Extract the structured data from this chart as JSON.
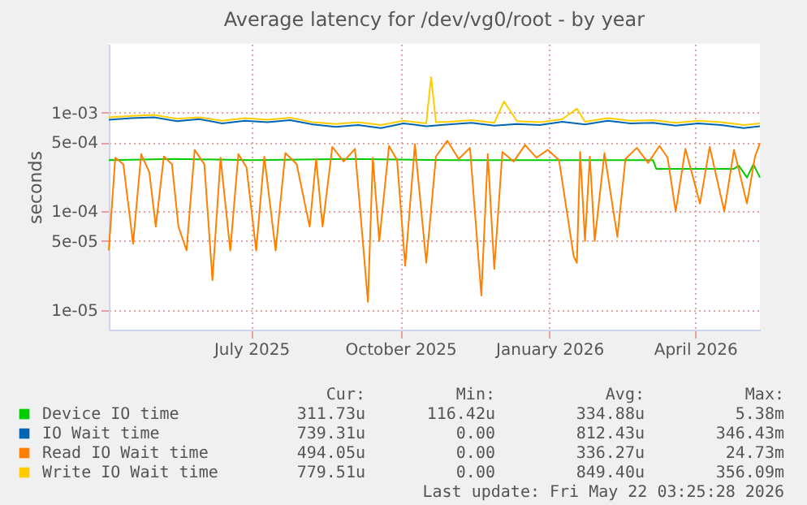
{
  "chart_data": {
    "type": "line",
    "title": "Average latency for /dev/vg0/root - by year",
    "ylabel": "seconds",
    "log": true,
    "grid": true,
    "legend": "bottom",
    "line_style": "solid",
    "marker": "none",
    "xlim": [
      "2025-04-04",
      "2026-05-11"
    ],
    "xticks": [
      {
        "value": "2025-07-01",
        "label": "July 2025"
      },
      {
        "value": "2025-10-01",
        "label": "October 2025"
      },
      {
        "value": "2026-01-01",
        "label": "January 2026"
      },
      {
        "value": "2026-04-01",
        "label": "April 2026"
      }
    ],
    "ylim": [
      6.3e-06,
      0.005
    ],
    "yticks": [
      {
        "value": 1e-05,
        "label": "1e-05"
      },
      {
        "value": 5e-05,
        "label": "5e-05"
      },
      {
        "value": 0.0001,
        "label": "1e-04"
      },
      {
        "value": 0.0005,
        "label": "5e-04"
      },
      {
        "value": 0.001,
        "label": "1e-03"
      }
    ],
    "series": [
      {
        "name": "Device IO time",
        "color": "#00cc00",
        "x": [
          "2025-04-04",
          "2025-05-15",
          "2025-07-01",
          "2025-09-01",
          "2025-11-01",
          "2026-01-01",
          "2026-03-06",
          "2026-03-08",
          "2026-04-25",
          "2026-04-28",
          "2026-05-03",
          "2026-05-07",
          "2026-05-11"
        ],
        "values": [
          0.00033,
          0.00034,
          0.00033,
          0.00034,
          0.00033,
          0.00033,
          0.00033,
          0.00027,
          0.00027,
          0.00029,
          0.00022,
          0.0003,
          0.00022
        ]
      },
      {
        "name": "IO Wait time",
        "color": "#0066b3",
        "x": [
          "2025-04-04",
          "2025-04-18",
          "2025-05-02",
          "2025-05-16",
          "2025-05-30",
          "2025-06-13",
          "2025-06-27",
          "2025-07-11",
          "2025-07-25",
          "2025-08-08",
          "2025-08-22",
          "2025-09-05",
          "2025-09-19",
          "2025-10-03",
          "2025-10-17",
          "2025-10-31",
          "2025-11-14",
          "2025-11-28",
          "2025-12-12",
          "2025-12-26",
          "2026-01-09",
          "2026-01-23",
          "2026-02-06",
          "2026-02-20",
          "2026-03-06",
          "2026-03-20",
          "2026-04-03",
          "2026-04-17",
          "2026-05-01",
          "2026-05-11"
        ],
        "values": [
          0.00085,
          0.00088,
          0.0009,
          0.00082,
          0.00086,
          0.00078,
          0.00083,
          0.0008,
          0.00084,
          0.00076,
          0.00072,
          0.00075,
          0.0007,
          0.00078,
          0.00073,
          0.00076,
          0.00079,
          0.00074,
          0.00077,
          0.00075,
          0.00081,
          0.00076,
          0.00083,
          0.00078,
          0.00079,
          0.00074,
          0.00078,
          0.00075,
          0.0007,
          0.00073
        ]
      },
      {
        "name": "Read IO Wait time",
        "color": "#ff8000",
        "x": [
          "2025-04-04",
          "2025-04-08",
          "2025-04-13",
          "2025-04-19",
          "2025-04-24",
          "2025-04-29",
          "2025-05-03",
          "2025-05-08",
          "2025-05-13",
          "2025-05-17",
          "2025-05-22",
          "2025-05-27",
          "2025-06-02",
          "2025-06-07",
          "2025-06-12",
          "2025-06-18",
          "2025-06-23",
          "2025-06-28",
          "2025-07-04",
          "2025-07-09",
          "2025-07-16",
          "2025-07-22",
          "2025-07-29",
          "2025-08-06",
          "2025-08-10",
          "2025-08-14",
          "2025-08-20",
          "2025-08-27",
          "2025-09-03",
          "2025-09-11",
          "2025-09-14",
          "2025-09-18",
          "2025-09-24",
          "2025-09-29",
          "2025-10-04",
          "2025-10-10",
          "2025-10-17",
          "2025-10-23",
          "2025-10-30",
          "2025-11-06",
          "2025-11-13",
          "2025-11-20",
          "2025-11-24",
          "2025-11-28",
          "2025-12-03",
          "2025-12-10",
          "2025-12-17",
          "2025-12-24",
          "2025-12-31",
          "2026-01-07",
          "2026-01-16",
          "2026-01-18",
          "2026-01-20",
          "2026-01-23",
          "2026-01-26",
          "2026-01-29",
          "2026-02-04",
          "2026-02-12",
          "2026-02-17",
          "2026-02-24",
          "2026-03-03",
          "2026-03-10",
          "2026-03-15",
          "2026-03-20",
          "2026-03-26",
          "2026-04-04",
          "2026-04-10",
          "2026-04-19",
          "2026-04-25",
          "2026-05-03",
          "2026-05-08",
          "2026-05-11"
        ],
        "values": [
          4e-05,
          0.00035,
          0.0003,
          4.7e-05,
          0.00038,
          0.00025,
          7e-05,
          0.00036,
          0.0003,
          7e-05,
          4e-05,
          0.00042,
          0.0003,
          2e-05,
          0.00035,
          4e-05,
          0.00038,
          0.00028,
          4e-05,
          0.00036,
          4e-05,
          0.00039,
          0.0003,
          7e-05,
          0.00034,
          7e-05,
          0.00045,
          0.00032,
          0.00043,
          1.2e-05,
          0.00035,
          5e-05,
          0.00046,
          0.00033,
          2.8e-05,
          0.00048,
          3e-05,
          0.00036,
          0.00052,
          0.00034,
          0.00044,
          1.4e-05,
          0.00038,
          2.6e-05,
          0.0004,
          0.00032,
          0.00047,
          0.00035,
          0.00042,
          0.00033,
          3.5e-05,
          3e-05,
          0.0004,
          5e-05,
          0.00036,
          5e-05,
          0.00039,
          5.5e-05,
          0.00034,
          0.00044,
          0.00031,
          0.00046,
          0.00035,
          0.0001,
          0.00043,
          0.00012,
          0.00045,
          0.0001,
          0.00042,
          0.00012,
          0.00036,
          0.00049
        ]
      },
      {
        "name": "Write IO Wait time",
        "color": "#ffcc00",
        "x": [
          "2025-04-04",
          "2025-04-18",
          "2025-05-02",
          "2025-05-16",
          "2025-05-30",
          "2025-06-13",
          "2025-06-27",
          "2025-07-11",
          "2025-07-25",
          "2025-08-08",
          "2025-08-22",
          "2025-09-05",
          "2025-09-19",
          "2025-10-03",
          "2025-10-17",
          "2025-10-20",
          "2025-10-23",
          "2025-10-31",
          "2025-11-14",
          "2025-11-28",
          "2025-12-04",
          "2025-12-12",
          "2025-12-26",
          "2026-01-09",
          "2026-01-18",
          "2026-01-23",
          "2026-02-06",
          "2026-02-20",
          "2026-03-06",
          "2026-03-20",
          "2026-04-03",
          "2026-04-17",
          "2026-05-01",
          "2026-05-11"
        ],
        "values": [
          0.0009,
          0.00093,
          0.00095,
          0.00087,
          0.0009,
          0.00083,
          0.00088,
          0.00085,
          0.00089,
          0.0008,
          0.00077,
          0.0008,
          0.00075,
          0.00083,
          0.00078,
          0.0023,
          0.0008,
          0.00081,
          0.00084,
          0.00079,
          0.0013,
          0.00082,
          0.0008,
          0.00086,
          0.0011,
          0.00081,
          0.00088,
          0.00083,
          0.00084,
          0.00079,
          0.00083,
          0.0008,
          0.00075,
          0.00078
        ]
      }
    ],
    "annotations": [
      "Cur:",
      "Min:",
      "Avg:",
      "Max:",
      "311.73u",
      "116.42u",
      "334.88u",
      "5.38m",
      "739.31u",
      "0.00",
      "812.43u",
      "346.43m",
      "494.05u",
      "0.00",
      "336.27u",
      "24.73m",
      "779.51u",
      "0.00",
      "849.40u",
      "356.09m",
      "Last update: Fri May 22 03:25:28 2026"
    ]
  }
}
